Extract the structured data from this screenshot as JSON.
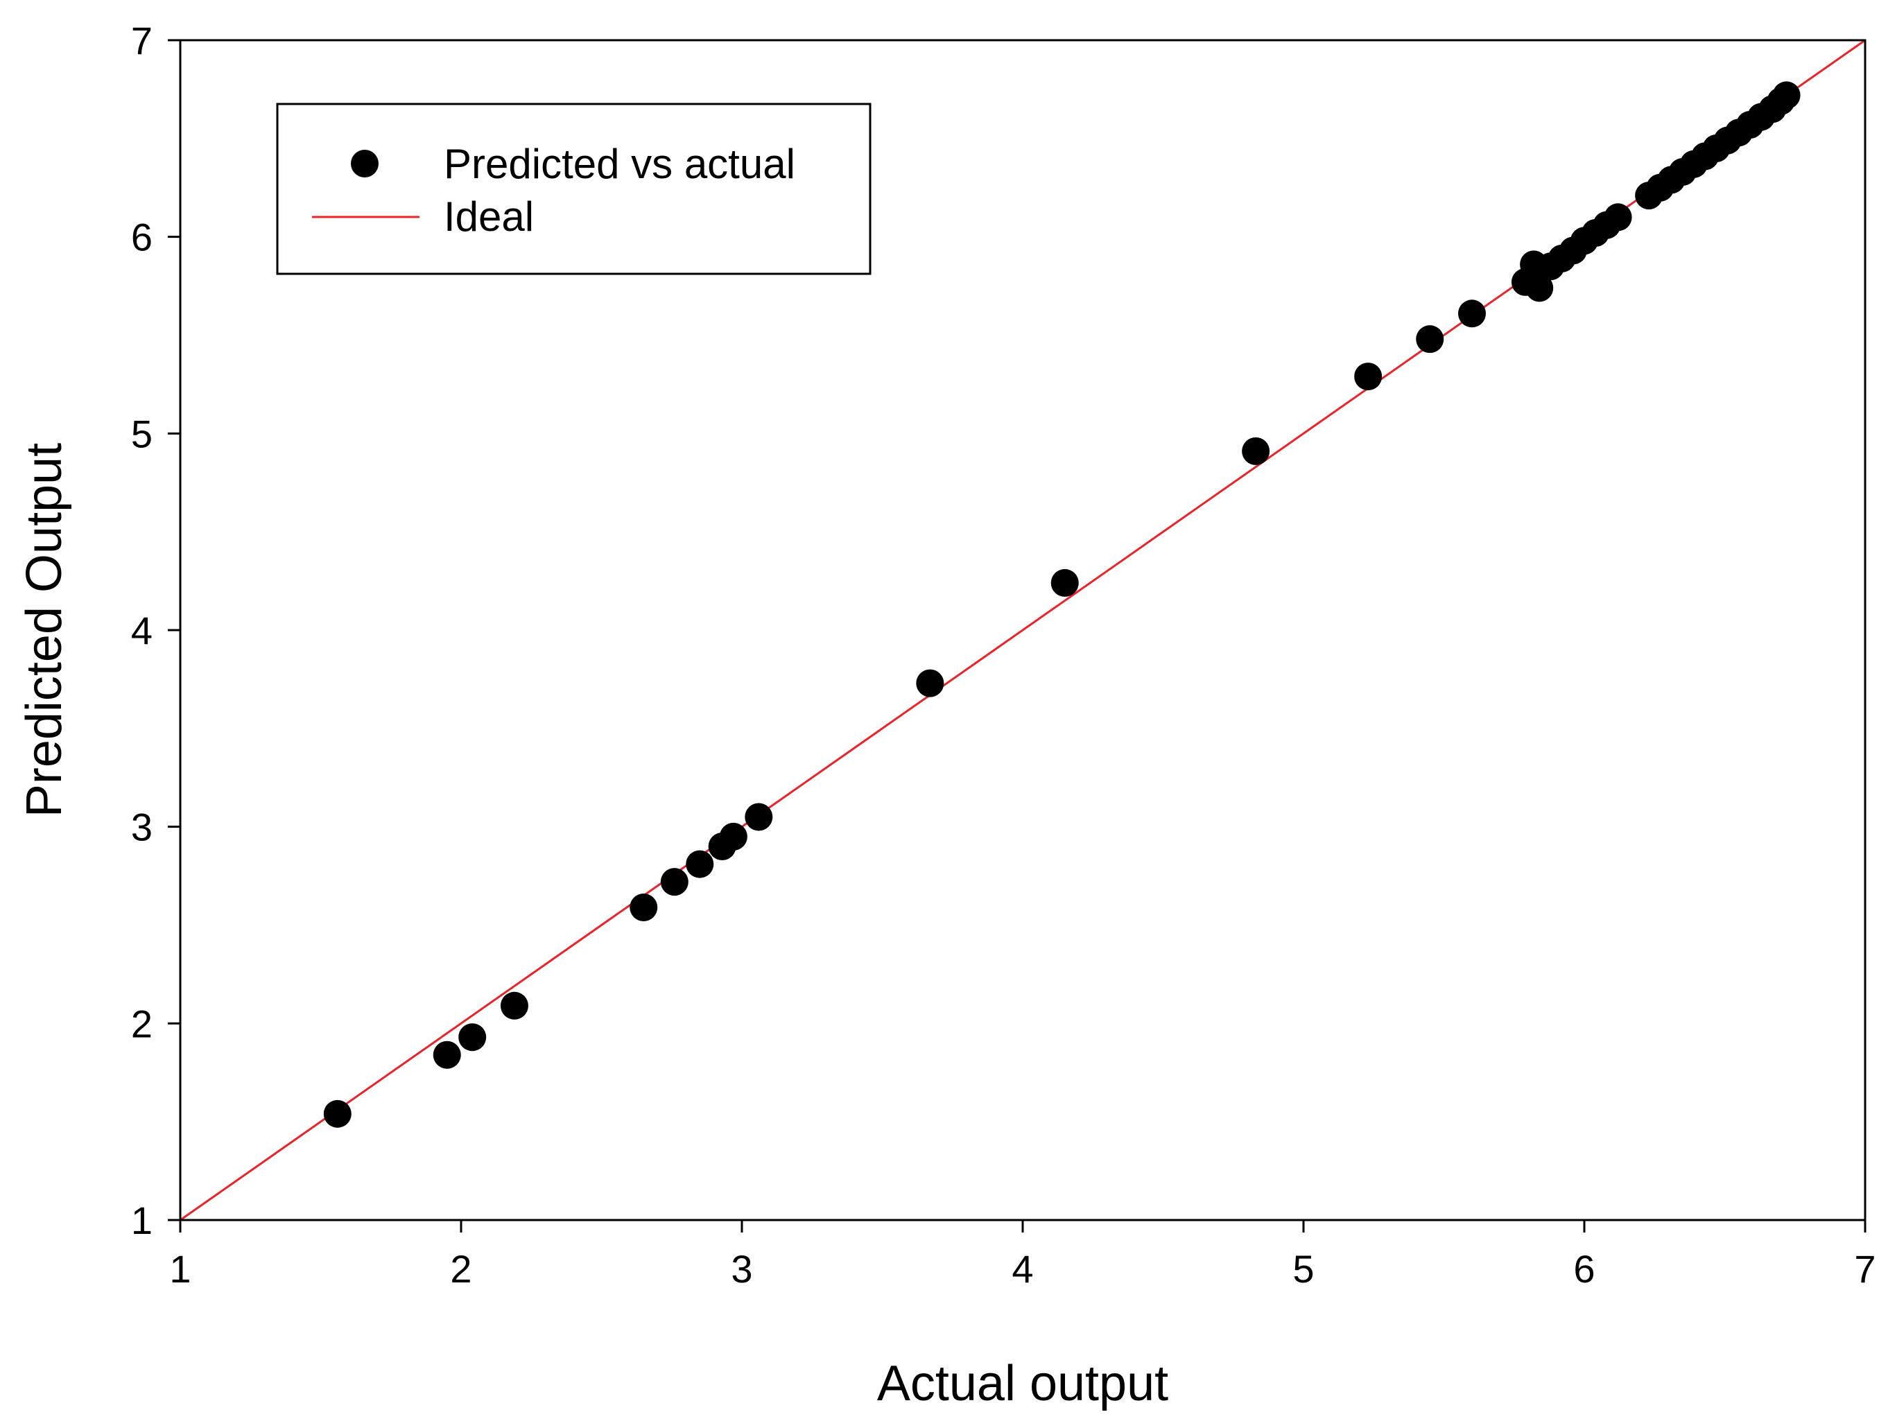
{
  "chart_data": {
    "type": "scatter",
    "xlabel": "Actual output",
    "ylabel": "Predicted Output",
    "xlim": [
      1,
      7
    ],
    "ylim": [
      1,
      7
    ],
    "xticks": [
      1,
      2,
      3,
      4,
      5,
      6,
      7
    ],
    "yticks": [
      1,
      2,
      3,
      4,
      5,
      6,
      7
    ],
    "grid": false,
    "legend_position": "top-left",
    "series": [
      {
        "name": "Predicted vs actual",
        "kind": "scatter",
        "color": "#000000",
        "marker": "filled-circle",
        "points": [
          [
            1.56,
            1.54
          ],
          [
            1.95,
            1.84
          ],
          [
            2.04,
            1.93
          ],
          [
            2.19,
            2.09
          ],
          [
            2.65,
            2.59
          ],
          [
            2.76,
            2.72
          ],
          [
            2.85,
            2.81
          ],
          [
            2.93,
            2.9
          ],
          [
            2.97,
            2.95
          ],
          [
            3.06,
            3.05
          ],
          [
            3.67,
            3.73
          ],
          [
            4.15,
            4.24
          ],
          [
            4.83,
            4.91
          ],
          [
            5.23,
            5.29
          ],
          [
            5.45,
            5.48
          ],
          [
            5.6,
            5.61
          ],
          [
            5.79,
            5.77
          ],
          [
            5.82,
            5.86
          ],
          [
            5.84,
            5.74
          ],
          [
            5.88,
            5.85
          ],
          [
            5.92,
            5.89
          ],
          [
            5.96,
            5.93
          ],
          [
            6.0,
            5.98
          ],
          [
            6.04,
            6.02
          ],
          [
            6.08,
            6.06
          ],
          [
            6.12,
            6.1
          ],
          [
            6.23,
            6.21
          ],
          [
            6.27,
            6.25
          ],
          [
            6.31,
            6.29
          ],
          [
            6.35,
            6.33
          ],
          [
            6.39,
            6.37
          ],
          [
            6.43,
            6.41
          ],
          [
            6.47,
            6.45
          ],
          [
            6.51,
            6.49
          ],
          [
            6.55,
            6.53
          ],
          [
            6.59,
            6.57
          ],
          [
            6.63,
            6.61
          ],
          [
            6.67,
            6.65
          ],
          [
            6.7,
            6.69
          ],
          [
            6.72,
            6.72
          ]
        ]
      },
      {
        "name": "Ideal",
        "kind": "line",
        "color": "#e8242a",
        "points": [
          [
            1,
            1
          ],
          [
            7,
            7
          ]
        ]
      }
    ]
  }
}
